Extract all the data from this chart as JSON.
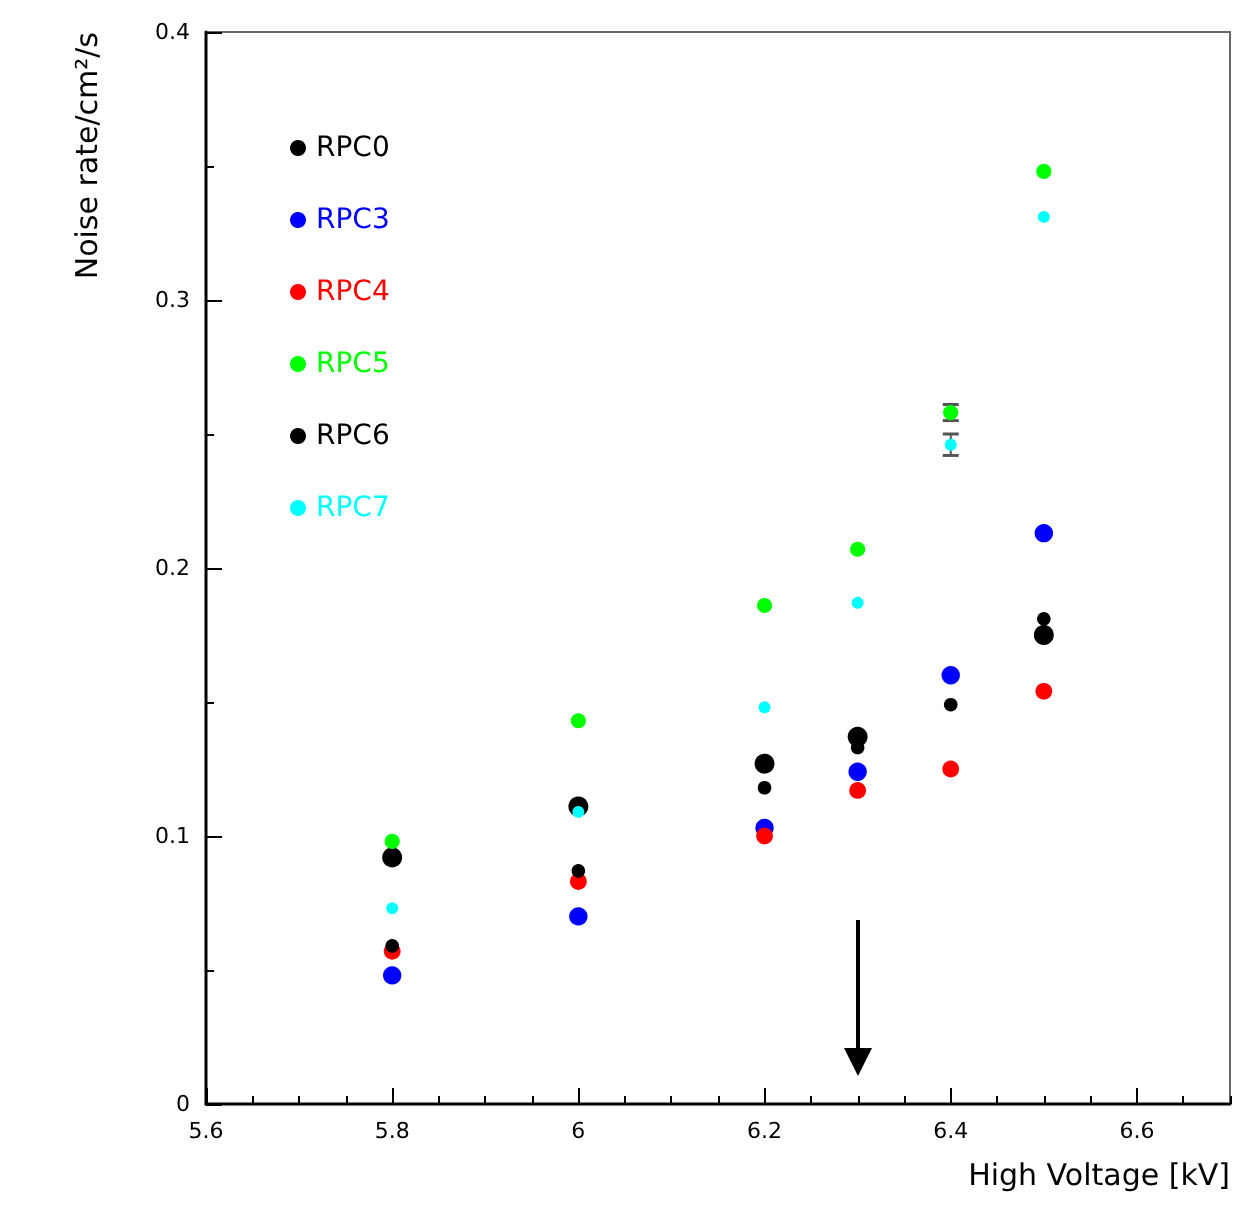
{
  "chart_data": {
    "type": "scatter",
    "xlabel": "High Voltage [kV]",
    "ylabel": "Noise rate/cm²/s",
    "x": [
      5.8,
      6,
      6.2,
      6.3,
      6.4,
      6.5
    ],
    "series": [
      {
        "name": "RPC0",
        "color": "#000000",
        "values": [
          0.092,
          0.111,
          0.127,
          0.137,
          null,
          0.175
        ]
      },
      {
        "name": "RPC3",
        "color": "#0000ff",
        "values": [
          0.048,
          0.07,
          0.103,
          0.124,
          0.16,
          0.213
        ]
      },
      {
        "name": "RPC4",
        "color": "#ff0000",
        "values": [
          0.057,
          0.083,
          0.1,
          0.117,
          0.125,
          0.154
        ]
      },
      {
        "name": "RPC5",
        "color": "#00ff00",
        "values": [
          0.098,
          0.143,
          0.186,
          0.207,
          0.258,
          0.348
        ],
        "errors": [
          null,
          null,
          null,
          null,
          0.003,
          null
        ]
      },
      {
        "name": "RPC6",
        "color": "#000000",
        "values": [
          0.059,
          0.087,
          0.118,
          0.133,
          0.149,
          0.181
        ]
      },
      {
        "name": "RPC7",
        "color": "#00ffff",
        "values": [
          0.073,
          0.109,
          0.148,
          0.187,
          0.246,
          0.331
        ],
        "errors": [
          null,
          null,
          null,
          null,
          0.004,
          null
        ]
      }
    ],
    "xlim": [
      5.6,
      6.7
    ],
    "xticks": [
      5.6,
      5.8,
      6,
      6.2,
      6.4,
      6.6
    ],
    "ylim": [
      0,
      0.4
    ],
    "yticks": [
      0,
      0.1,
      0.2,
      0.3,
      0.4
    ],
    "grid": false,
    "legend": "top left",
    "marker": "circle"
  }
}
